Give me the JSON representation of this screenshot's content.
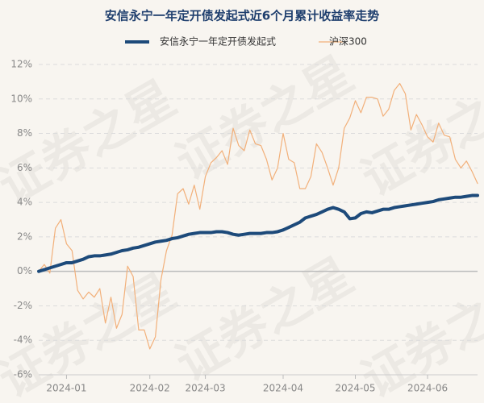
{
  "chart_data": {
    "type": "line",
    "title": "安信永宁一年定开债发起式近6个月累计收益率走势",
    "watermark": "证券之星",
    "categories": [
      null,
      null,
      null,
      null,
      null,
      "2024-01",
      null,
      null,
      null,
      null,
      null,
      null,
      null,
      null,
      null,
      null,
      null,
      null,
      null,
      null,
      "2024-02",
      null,
      null,
      null,
      null,
      null,
      null,
      null,
      null,
      null,
      "2024-03",
      null,
      null,
      null,
      null,
      null,
      null,
      null,
      null,
      null,
      null,
      null,
      null,
      null,
      "2024-04",
      null,
      null,
      null,
      null,
      null,
      null,
      null,
      null,
      null,
      null,
      null,
      null,
      "2024-05",
      null,
      null,
      null,
      null,
      null,
      null,
      null,
      null,
      null,
      null,
      null,
      null,
      "2024-06",
      null,
      null,
      null,
      null,
      null,
      null,
      null,
      null,
      null
    ],
    "series": [
      {
        "name": "安信永宁一年定开债发起式",
        "color": "#1d4a7a",
        "width": 4,
        "values": [
          0,
          0.1,
          0.2,
          0.3,
          0.4,
          0.5,
          0.5,
          0.6,
          0.7,
          0.85,
          0.9,
          0.9,
          0.95,
          1.0,
          1.1,
          1.2,
          1.25,
          1.35,
          1.4,
          1.5,
          1.6,
          1.7,
          1.75,
          1.8,
          1.9,
          1.95,
          2.05,
          2.15,
          2.2,
          2.25,
          2.25,
          2.25,
          2.3,
          2.3,
          2.25,
          2.15,
          2.1,
          2.15,
          2.2,
          2.2,
          2.2,
          2.25,
          2.25,
          2.3,
          2.4,
          2.55,
          2.7,
          2.85,
          3.1,
          3.2,
          3.3,
          3.45,
          3.6,
          3.7,
          3.6,
          3.45,
          3.05,
          3.1,
          3.35,
          3.45,
          3.4,
          3.5,
          3.6,
          3.6,
          3.7,
          3.75,
          3.8,
          3.85,
          3.9,
          3.95,
          4.0,
          4.05,
          4.15,
          4.2,
          4.25,
          4.3,
          4.3,
          4.35,
          4.4,
          4.4
        ]
      },
      {
        "name": "沪深300",
        "color": "#f2b07a",
        "width": 1.2,
        "values": [
          0,
          0.4,
          -0.1,
          2.5,
          3.0,
          1.6,
          1.2,
          -1.1,
          -1.6,
          -1.2,
          -1.5,
          -1.0,
          -3.0,
          -1.5,
          -3.3,
          -2.5,
          0.3,
          -0.3,
          -3.4,
          -3.4,
          -4.5,
          -3.8,
          -0.5,
          1.2,
          2.1,
          4.5,
          4.8,
          3.9,
          5.0,
          3.6,
          5.5,
          6.3,
          6.6,
          7.0,
          6.2,
          8.3,
          7.3,
          7.0,
          8.2,
          7.4,
          7.3,
          6.5,
          5.3,
          6.0,
          8.0,
          6.5,
          6.3,
          4.8,
          4.8,
          5.5,
          7.4,
          6.9,
          6.0,
          5.0,
          6.0,
          8.3,
          8.9,
          9.9,
          9.2,
          10.1,
          10.1,
          10.0,
          9.0,
          9.4,
          10.5,
          10.9,
          10.3,
          8.2,
          9.1,
          8.5,
          7.8,
          7.5,
          8.6,
          7.9,
          7.8,
          6.5,
          6.0,
          6.4,
          5.8,
          5.1
        ]
      }
    ],
    "ylim": [
      -6,
      12
    ],
    "yticks": [
      {
        "value": -6,
        "label": "-6%"
      },
      {
        "value": -4,
        "label": "-4%"
      },
      {
        "value": -2,
        "label": "-2%"
      },
      {
        "value": 0,
        "label": "0%"
      },
      {
        "value": 2,
        "label": "2%"
      },
      {
        "value": 4,
        "label": "4%"
      },
      {
        "value": 6,
        "label": "6%"
      },
      {
        "value": 8,
        "label": "8%"
      },
      {
        "value": 10,
        "label": "10%"
      },
      {
        "value": 12,
        "label": "12%"
      }
    ],
    "grid": true
  }
}
